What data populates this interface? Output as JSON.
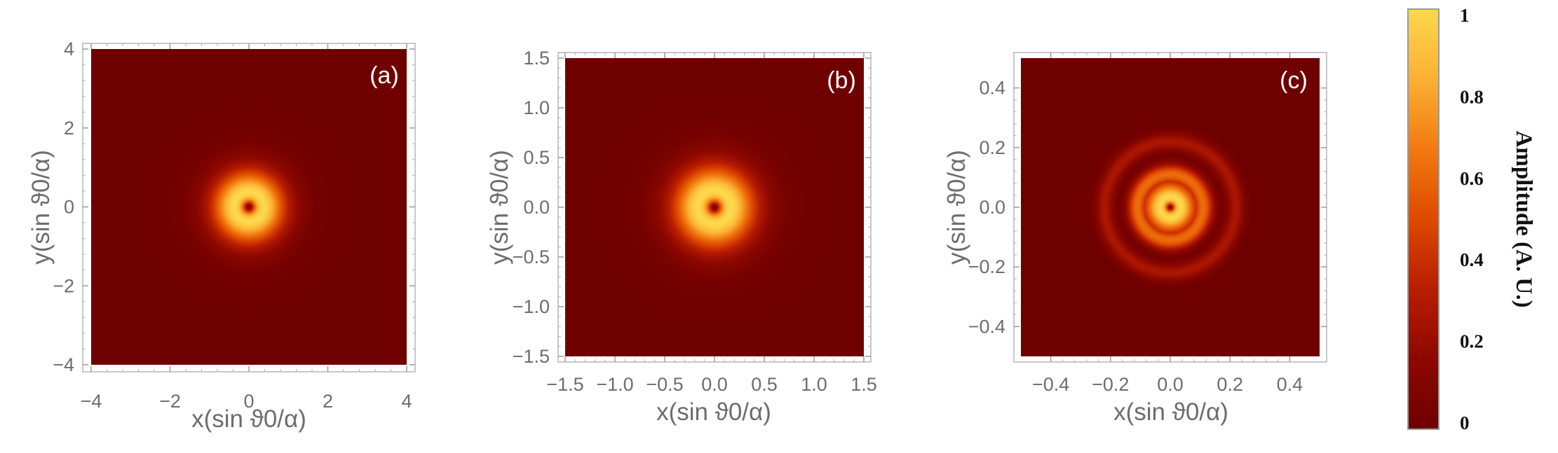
{
  "chart_data": [
    {
      "type": "heatmap",
      "panel_label": "(a)",
      "xlabel": "x(sin ϑ0/α)",
      "ylabel": "y(sin ϑ0/α)",
      "xlim": [
        -4,
        4
      ],
      "ylim": [
        -4,
        4
      ],
      "x_ticks": [
        "−4",
        "−2",
        "0",
        "2",
        "4"
      ],
      "y_ticks": [
        "−4",
        "−2",
        "0",
        "2",
        "4"
      ],
      "tick_values": [
        -4,
        -2,
        0,
        2,
        4
      ],
      "pattern": "donut ring with dark center",
      "peak_radius": 0.38,
      "ring_width": 0.55,
      "secondary_rings": []
    },
    {
      "type": "heatmap",
      "panel_label": "(b)",
      "xlabel": "x(sin ϑ0/α)",
      "ylabel": "y(sin ϑ0/α)",
      "xlim": [
        -1.5,
        1.5
      ],
      "ylim": [
        -1.5,
        1.5
      ],
      "x_ticks": [
        "−1.5",
        "−1.0",
        "−0.5",
        "0.0",
        "0.5",
        "1.0",
        "1.5"
      ],
      "y_ticks": [
        "−1.5",
        "−1.0",
        "−0.5",
        "0.0",
        "0.5",
        "1.0",
        "1.5"
      ],
      "tick_values": [
        -1.5,
        -1.0,
        -0.5,
        0.0,
        0.5,
        1.0,
        1.5
      ],
      "pattern": "donut ring with dark center",
      "peak_radius": 0.17,
      "ring_width": 0.32,
      "secondary_rings": []
    },
    {
      "type": "heatmap",
      "panel_label": "(c)",
      "xlabel": "x(sin ϑ0/α)",
      "ylabel": "y(sin ϑ0/α)",
      "xlim": [
        -0.5,
        0.5
      ],
      "ylim": [
        -0.5,
        0.5
      ],
      "x_ticks": [
        "−0.4",
        "−0.2",
        "0.0",
        "0.2",
        "0.4"
      ],
      "y_ticks": [
        "−0.4",
        "−0.2",
        "0.0",
        "0.2",
        "0.4"
      ],
      "tick_values": [
        -0.4,
        -0.2,
        0.0,
        0.2,
        0.4
      ],
      "pattern": "central ring with concentric side rings",
      "peak_radius": 0.035,
      "ring_width": 0.05,
      "secondary_rings": [
        {
          "radius": 0.11,
          "amplitude": 0.62,
          "width": 0.035
        },
        {
          "radius": 0.22,
          "amplitude": 0.28,
          "width": 0.03
        }
      ]
    }
  ],
  "colorbar": {
    "label": "Amplitude (A. U.)",
    "ticks": [
      "1",
      "0.8",
      "0.6",
      "0.4",
      "0.2",
      "0"
    ],
    "tick_values": [
      1,
      0.8,
      0.6,
      0.4,
      0.2,
      0
    ],
    "range": [
      0,
      1
    ],
    "colors": [
      "#6f0000",
      "#8e0800",
      "#b81d00",
      "#de4a00",
      "#f27a10",
      "#fbb034",
      "#fdd84d"
    ]
  }
}
